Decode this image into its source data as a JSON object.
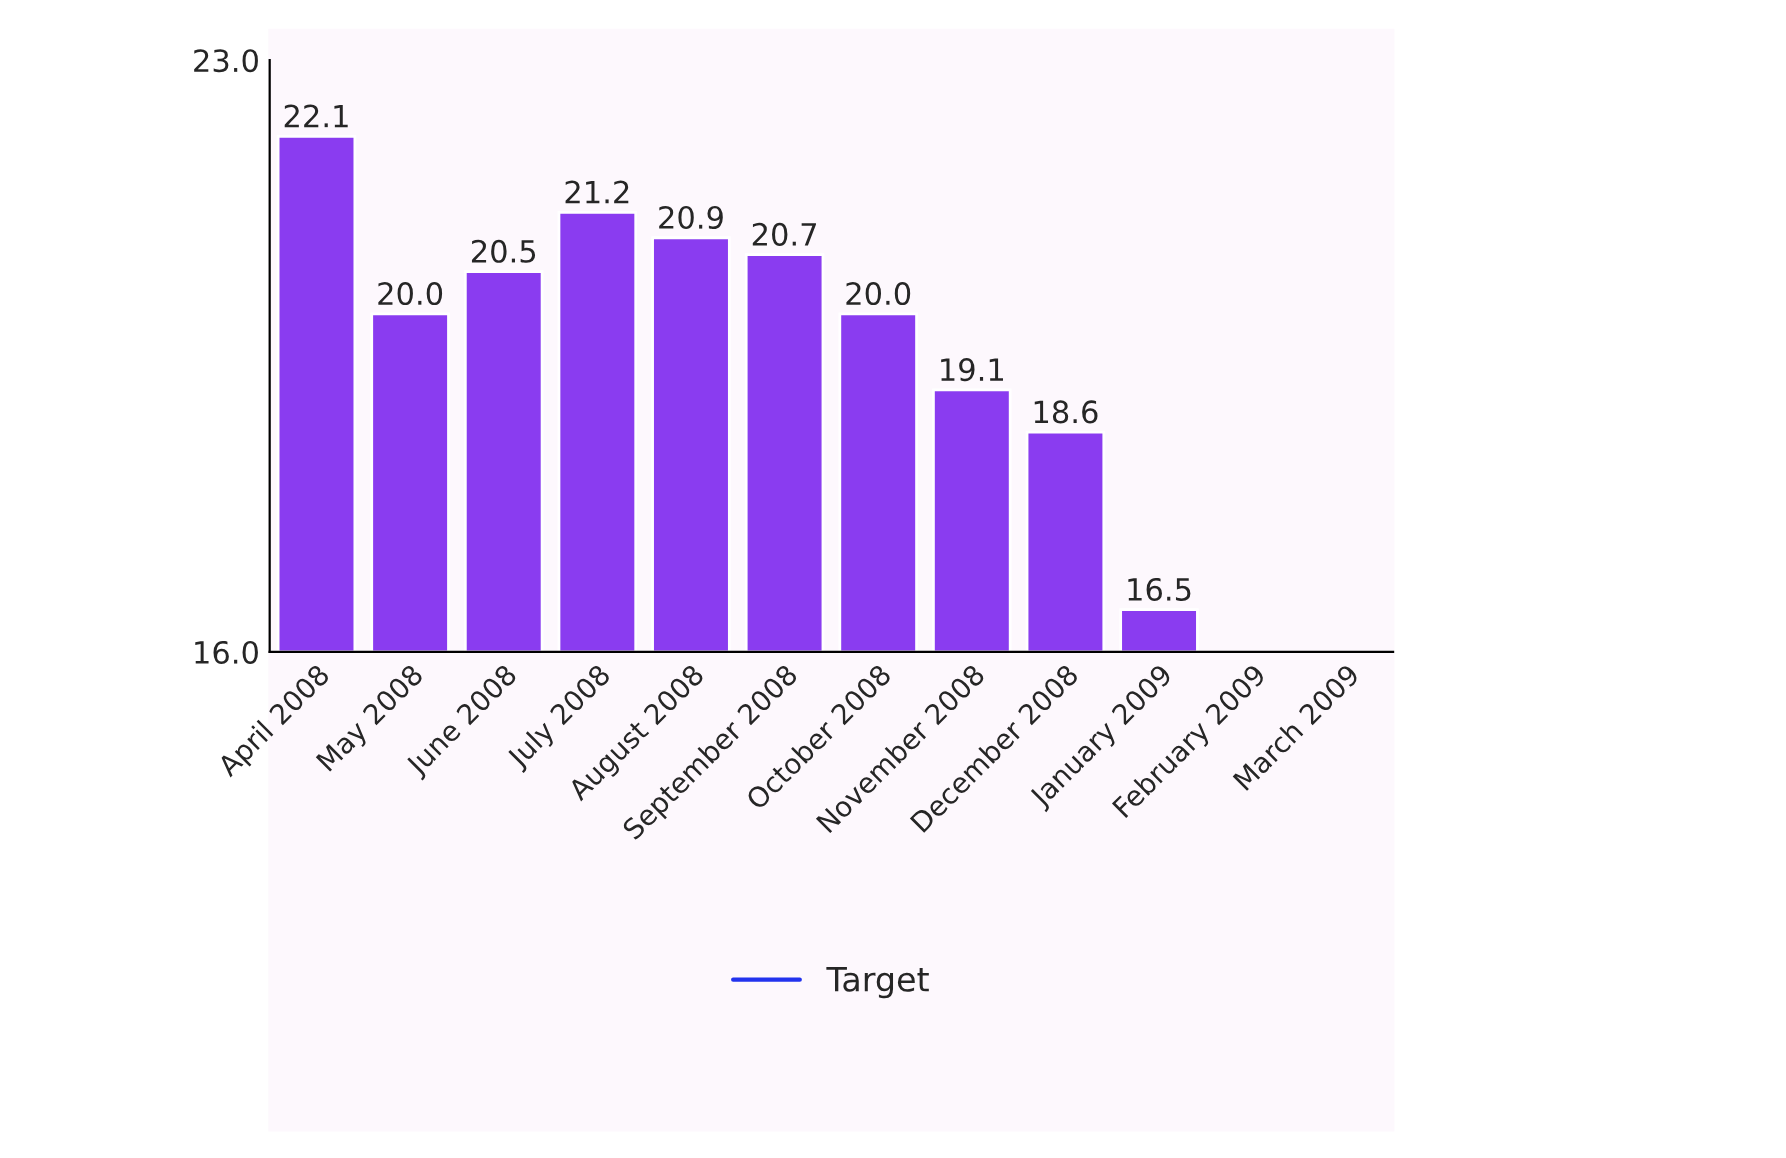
{
  "chart_data": {
    "type": "bar",
    "categories": [
      "April 2008",
      "May 2008",
      "June 2008",
      "July 2008",
      "August 2008",
      "September 2008",
      "October 2008",
      "November 2008",
      "December 2008",
      "January 2009",
      "February 2009",
      "March 2009"
    ],
    "series": [
      {
        "color": "#8a3cf0",
        "values": [
          22.1,
          20.0,
          20.5,
          21.2,
          20.9,
          20.7,
          20.0,
          19.1,
          18.6,
          16.5,
          null,
          null
        ],
        "value_labels": [
          "22.1",
          "20.0",
          "20.5",
          "21.2",
          "20.9",
          "20.7",
          "20.0",
          "19.1",
          "18.6",
          "16.5",
          null,
          null
        ]
      },
      {
        "type": "line",
        "name": "Target",
        "color": "#2233ee",
        "values": [
          null,
          null,
          null,
          null,
          null,
          null,
          null,
          null,
          null,
          null,
          null,
          null
        ]
      }
    ],
    "ylim": [
      16.0,
      23.0
    ],
    "yticks": [
      {
        "value": 16.0,
        "label": "16.0"
      },
      {
        "value": 23.0,
        "label": "23.0"
      }
    ],
    "grid": false,
    "legend": "bottom"
  }
}
